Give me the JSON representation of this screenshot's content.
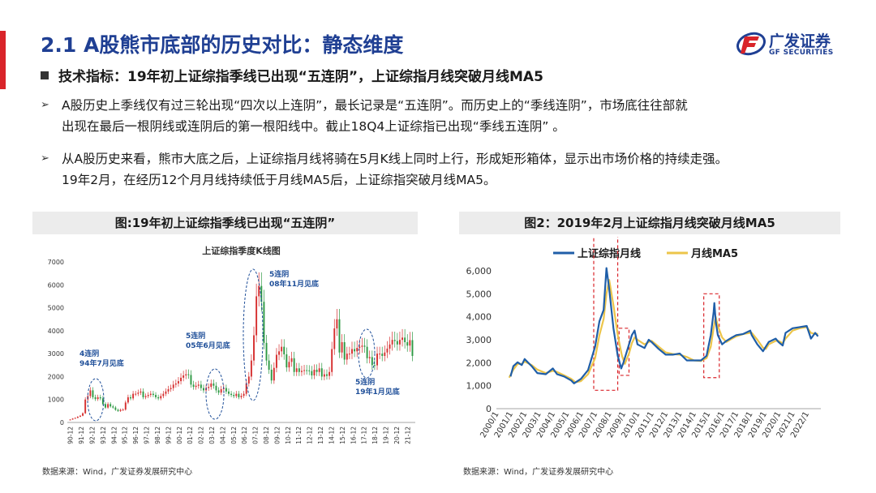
{
  "header": {
    "title": "2.1 A股熊市底部的历史对比：静态维度",
    "logo_cn": "广发证券",
    "logo_en": "GF SECURITIES"
  },
  "section": {
    "heading": "技术指标：19年初上证综指季线已出现“五连阴”，上证综指月线突破月线MA5",
    "bullets": [
      {
        "line1": "A股历史上季线仅有过三轮出现“四次以上连阴”，最长记录是“五连阴”。而历史上的“季线连阴”，市场底往往部就",
        "line2": "出现在最后一根阴线或连阴后的第一根阳线中。截止18Q4上证综指已出现“季线五连阴”  。"
      },
      {
        "line1": "从A股历史来看，熊市大底之后，上证综指月线将骑在5月K线上同时上行，形成矩形箱体，显示出市场价格的持续走强。",
        "line2": "19年2月，在经历12个月月线持续低于月线MA5后，上证综指突破月线MA5。"
      }
    ]
  },
  "figures": {
    "left": {
      "title": "图:19年初上证综指季线已出现“五连阴”",
      "source": "数据来源：Wind，广发证券发展研究中心"
    },
    "right": {
      "title": "图2：2019年2月上证综指月线突破月线MA5",
      "source": "数据来源：Wind，广发证券发展研究中心"
    }
  },
  "chart_data": [
    {
      "type": "candlestick",
      "title": "上证综指季度K线图",
      "ylim": [
        0,
        7000
      ],
      "yticks": [
        0,
        1000,
        2000,
        3000,
        4000,
        5000,
        6000,
        7000
      ],
      "xticks": [
        "90-12",
        "91-12",
        "92-12",
        "93-12",
        "94-12",
        "95-12",
        "96-12",
        "97-12",
        "98-12",
        "99-12",
        "00-12",
        "01-12",
        "02-12",
        "03-12",
        "04-12",
        "05-12",
        "06-12",
        "07-12",
        "08-12",
        "09-12",
        "10-12",
        "11-12",
        "12-12",
        "13-12",
        "14-12",
        "15-12",
        "16-12",
        "17-12",
        "18-12",
        "19-12",
        "20-12",
        "21-12"
      ],
      "close_approx": [
        127,
        170,
        200,
        250,
        292,
        400,
        1000,
        1150,
        1400,
        1100,
        1020,
        1100,
        1050,
        800,
        650,
        800,
        700,
        650,
        550,
        500,
        550,
        560,
        870,
        1100,
        1050,
        1250,
        1250,
        1300,
        1350,
        1100,
        1150,
        1200,
        1250,
        1200,
        1100,
        1050,
        1150,
        1250,
        1350,
        1450,
        1500,
        1650,
        1700,
        1800,
        1950,
        2050,
        2100,
        2070,
        1650,
        1550,
        1600,
        1650,
        1500,
        1400,
        1500,
        1550,
        1700,
        1600,
        1400,
        1300,
        1450,
        1500,
        1350,
        1250,
        1200,
        1150,
        1250,
        1100,
        1160,
        1250,
        1700,
        2000,
        2700,
        3800,
        5500,
        5950,
        5260,
        3470,
        2700,
        2300,
        1830,
        2380,
        2950,
        3100,
        3300,
        2970,
        2400,
        2640,
        2800,
        2200,
        2360,
        2200,
        2250,
        2280,
        2270,
        2240,
        2050,
        2300,
        2200,
        2360,
        2000,
        2100,
        2030,
        2200,
        3200,
        4100,
        4500,
        3050,
        3500,
        2740,
        3000,
        3000,
        3200,
        3100,
        3250,
        3300,
        3350,
        3300,
        2800,
        2850,
        2500,
        2490,
        3000,
        3000,
        2900,
        3050,
        3220,
        3400,
        3600,
        3550,
        3400,
        3600,
        3700,
        3500,
        3350,
        3590,
        2900
      ],
      "annotations": [
        {
          "label": "4连阴",
          "text": "94年7月见底"
        },
        {
          "label": "5连阴",
          "text": "05年6月见底"
        },
        {
          "label": "5连阴",
          "text": "08年11月见底"
        },
        {
          "label": "5连阴",
          "text": "19年1月见底"
        }
      ]
    },
    {
      "type": "line",
      "ylim": [
        0,
        6000
      ],
      "yticks": [
        "0",
        "1,000",
        "2,000",
        "3,000",
        "4,000",
        "5,000",
        "6,000"
      ],
      "xticks": [
        "2000/1",
        "2001/1",
        "2002/1",
        "2003/1",
        "2004/1",
        "2005/1",
        "2006/1",
        "2007/1",
        "2008/1",
        "2009/1",
        "2010/1",
        "2011/1",
        "2012/1",
        "2013/1",
        "2014/1",
        "2015/1",
        "2016/1",
        "2017/1",
        "2018/1",
        "2019/1",
        "2020/1",
        "2021/1",
        "2022/1"
      ],
      "legend": [
        "上证综指月线",
        "月线MA5"
      ],
      "colors": {
        "line": "#1f5ea8",
        "ma5": "#ecc54a",
        "box": "#d9242a"
      },
      "x_start": "2000-01",
      "series": [
        {
          "name": "上证综指月线",
          "values_yearly": [
            [
              1.0,
              1400
            ],
            [
              1.2,
              1850
            ],
            [
              1.5,
              2020
            ],
            [
              1.8,
              1900
            ],
            [
              2.0,
              2160
            ],
            [
              2.5,
              1850
            ],
            [
              2.9,
              1550
            ],
            [
              3.5,
              1500
            ],
            [
              4.0,
              1750
            ],
            [
              4.3,
              1500
            ],
            [
              4.8,
              1400
            ],
            [
              5.3,
              1230
            ],
            [
              5.5,
              1100
            ],
            [
              6.0,
              1300
            ],
            [
              6.5,
              1680
            ],
            [
              7.0,
              2700
            ],
            [
              7.3,
              3800
            ],
            [
              7.6,
              4300
            ],
            [
              7.8,
              6120
            ],
            [
              8.0,
              5200
            ],
            [
              8.3,
              3500
            ],
            [
              8.6,
              2300
            ],
            [
              8.85,
              1750
            ],
            [
              9.0,
              1990
            ],
            [
              9.4,
              2800
            ],
            [
              9.6,
              3200
            ],
            [
              9.8,
              3400
            ],
            [
              10.0,
              2800
            ],
            [
              10.5,
              2640
            ],
            [
              10.8,
              3000
            ],
            [
              11.0,
              2900
            ],
            [
              11.5,
              2600
            ],
            [
              12.0,
              2350
            ],
            [
              12.5,
              2350
            ],
            [
              13.0,
              2400
            ],
            [
              13.5,
              2100
            ],
            [
              14.0,
              2100
            ],
            [
              14.5,
              2100
            ],
            [
              14.9,
              2300
            ],
            [
              15.2,
              3200
            ],
            [
              15.4,
              4200
            ],
            [
              15.45,
              4600
            ],
            [
              15.55,
              3800
            ],
            [
              15.7,
              3200
            ],
            [
              16.0,
              2800
            ],
            [
              16.3,
              2950
            ],
            [
              16.7,
              3100
            ],
            [
              17.0,
              3200
            ],
            [
              17.5,
              3250
            ],
            [
              18.0,
              3400
            ],
            [
              18.1,
              3200
            ],
            [
              18.5,
              2800
            ],
            [
              18.9,
              2500
            ],
            [
              19.0,
              2600
            ],
            [
              19.3,
              2900
            ],
            [
              19.8,
              3050
            ],
            [
              20.0,
              2900
            ],
            [
              20.3,
              2750
            ],
            [
              20.5,
              3300
            ],
            [
              21.0,
              3500
            ],
            [
              21.5,
              3550
            ],
            [
              22.0,
              3600
            ],
            [
              22.3,
              3050
            ],
            [
              22.6,
              3300
            ],
            [
              22.8,
              3150
            ]
          ]
        },
        {
          "name": "月线MA5",
          "values_yearly": [
            [
              0.9,
              1350
            ],
            [
              1.2,
              1700
            ],
            [
              1.5,
              1950
            ],
            [
              1.8,
              1950
            ],
            [
              2.0,
              2050
            ],
            [
              2.5,
              1900
            ],
            [
              2.9,
              1700
            ],
            [
              3.5,
              1550
            ],
            [
              4.0,
              1650
            ],
            [
              4.3,
              1600
            ],
            [
              4.8,
              1450
            ],
            [
              5.3,
              1300
            ],
            [
              5.6,
              1150
            ],
            [
              6.0,
              1200
            ],
            [
              6.5,
              1500
            ],
            [
              7.0,
              2200
            ],
            [
              7.3,
              3200
            ],
            [
              7.6,
              3900
            ],
            [
              7.8,
              5000
            ],
            [
              8.0,
              5600
            ],
            [
              8.3,
              4500
            ],
            [
              8.6,
              3200
            ],
            [
              8.9,
              2300
            ],
            [
              9.1,
              1950
            ],
            [
              9.4,
              2400
            ],
            [
              9.6,
              2850
            ],
            [
              9.8,
              3100
            ],
            [
              10.0,
              3000
            ],
            [
              10.5,
              2800
            ],
            [
              10.8,
              2900
            ],
            [
              11.0,
              2950
            ],
            [
              11.5,
              2700
            ],
            [
              12.0,
              2450
            ],
            [
              12.5,
              2380
            ],
            [
              13.0,
              2350
            ],
            [
              13.5,
              2250
            ],
            [
              14.0,
              2100
            ],
            [
              14.5,
              2080
            ],
            [
              14.9,
              2200
            ],
            [
              15.2,
              2700
            ],
            [
              15.4,
              3500
            ],
            [
              15.55,
              4000
            ],
            [
              15.7,
              3600
            ],
            [
              16.0,
              3100
            ],
            [
              16.3,
              2900
            ],
            [
              16.7,
              3050
            ],
            [
              17.0,
              3150
            ],
            [
              17.5,
              3250
            ],
            [
              18.0,
              3300
            ],
            [
              18.1,
              3300
            ],
            [
              18.5,
              3000
            ],
            [
              18.9,
              2650
            ],
            [
              19.1,
              2600
            ],
            [
              19.3,
              2800
            ],
            [
              19.8,
              2950
            ],
            [
              20.0,
              2950
            ],
            [
              20.3,
              2850
            ],
            [
              20.5,
              3050
            ],
            [
              21.0,
              3400
            ],
            [
              21.5,
              3500
            ],
            [
              22.0,
              3550
            ],
            [
              22.3,
              3300
            ],
            [
              22.6,
              3250
            ],
            [
              22.8,
              3250
            ]
          ]
        }
      ]
    }
  ]
}
